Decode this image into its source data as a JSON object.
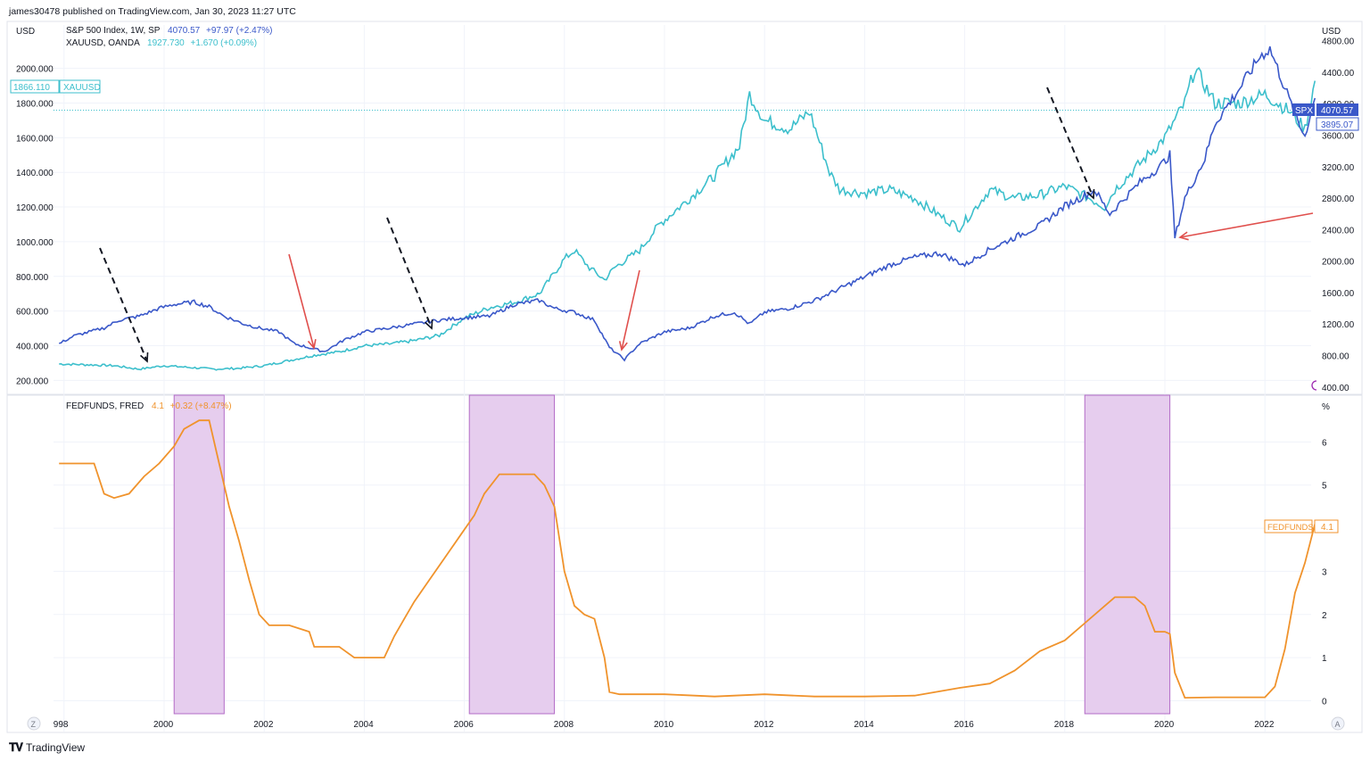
{
  "header": {
    "publisher": "james30478 published on TradingView.com, Jan 30, 2023 11:27 UTC"
  },
  "legend": {
    "spx_name": "S&P 500 Index, 1W, SP",
    "spx_value": "4070.57",
    "spx_change": "+97.97 (+2.47%)",
    "gold_name": "XAUUSD, OANDA",
    "gold_value": "1927.730",
    "gold_change": "+1.670 (+0.09%)",
    "fed_name": "FEDFUNDS, FRED",
    "fed_value": "4.1",
    "fed_change": "+0.32 (+8.47%)"
  },
  "price_labels": {
    "gold_left_value": "1866.110",
    "gold_left_name": "XAUUSD",
    "spx_tag": "SPX",
    "spx_right_value": "4070.57",
    "spx_right_second": "3895.07",
    "fed_tag": "FEDFUNDS",
    "fed_right_value": "4.1"
  },
  "footer": {
    "brand": "TradingView",
    "z_button": "Z",
    "a_button": "A"
  },
  "colors": {
    "spx": "#3a58c9",
    "gold": "#3cbfcc",
    "fed": "#f0932c",
    "shade": "#e6cdee",
    "shade_border": "#b36bc7",
    "red_arrow": "#e0504d",
    "black_arrow": "#131722"
  },
  "chart_data": [
    {
      "type": "line",
      "yaxis_left": {
        "unit": "USD",
        "ticks": [
          "2000.000",
          "1800.000",
          "1600.000",
          "1400.000",
          "1200.000",
          "1000.000",
          "800.000",
          "600.000",
          "400.000",
          "200.000"
        ],
        "ylim": [
          130,
          2250
        ]
      },
      "yaxis_right": {
        "unit": "USD",
        "ticks": [
          "4800.00",
          "4400.00",
          "4000.00",
          "3600.00",
          "3200.00",
          "2800.00",
          "2400.00",
          "2000.00",
          "1600.00",
          "1200.00",
          "800.00",
          "400.00"
        ],
        "ylim": [
          330,
          5000
        ]
      },
      "series": [
        {
          "name": "S&P 500 Index, 1W, SP",
          "axis": "right",
          "x": [
            1997.9,
            1998.2,
            1998.5,
            1998.8,
            1999.1,
            1999.5,
            1999.9,
            2000.2,
            2000.6,
            2000.9,
            2001.2,
            2001.6,
            2001.9,
            2002.3,
            2002.6,
            2002.9,
            2003.2,
            2003.6,
            2004.0,
            2004.5,
            2005.0,
            2005.5,
            2006.0,
            2006.5,
            2007.0,
            2007.5,
            2007.8,
            2008.2,
            2008.6,
            2008.9,
            2009.2,
            2009.5,
            2010.0,
            2010.5,
            2011.0,
            2011.4,
            2011.7,
            2012.0,
            2012.5,
            2013.0,
            2013.5,
            2014.0,
            2014.5,
            2015.0,
            2015.5,
            2016.0,
            2016.5,
            2017.0,
            2017.5,
            2018.0,
            2018.6,
            2018.9,
            2019.2,
            2019.5,
            2019.9,
            2020.1,
            2020.2,
            2020.4,
            2020.8,
            2021.0,
            2021.5,
            2021.9,
            2022.1,
            2022.4,
            2022.7,
            2022.8,
            2023.0
          ],
          "values": [
            950,
            1050,
            1100,
            1150,
            1250,
            1300,
            1400,
            1450,
            1480,
            1420,
            1300,
            1200,
            1150,
            1100,
            950,
            900,
            850,
            1000,
            1100,
            1150,
            1200,
            1250,
            1280,
            1300,
            1450,
            1500,
            1400,
            1350,
            1250,
            900,
            750,
            950,
            1100,
            1150,
            1300,
            1350,
            1200,
            1350,
            1400,
            1500,
            1650,
            1800,
            1950,
            2050,
            2100,
            1950,
            2150,
            2300,
            2450,
            2700,
            2900,
            2600,
            2800,
            3000,
            3200,
            3350,
            2300,
            2800,
            3300,
            3750,
            4200,
            4600,
            4700,
            4200,
            3700,
            3600,
            4070.57
          ]
        },
        {
          "name": "XAUUSD, OANDA",
          "axis": "left",
          "x": [
            1997.9,
            1998.5,
            1999.0,
            1999.5,
            2000.0,
            2000.5,
            2001.0,
            2001.5,
            2002.0,
            2002.5,
            2003.0,
            2003.5,
            2004.0,
            2004.5,
            2005.0,
            2005.5,
            2006.0,
            2006.5,
            2007.0,
            2007.5,
            2008.0,
            2008.2,
            2008.5,
            2008.8,
            2009.0,
            2009.5,
            2009.9,
            2010.5,
            2011.0,
            2011.5,
            2011.7,
            2012.0,
            2012.5,
            2012.9,
            2013.3,
            2013.5,
            2014.0,
            2014.5,
            2015.0,
            2015.5,
            2015.9,
            2016.5,
            2017.0,
            2017.5,
            2018.0,
            2018.5,
            2018.8,
            2019.0,
            2019.5,
            2020.0,
            2020.4,
            2020.6,
            2021.0,
            2021.5,
            2022.0,
            2022.5,
            2022.8,
            2023.0
          ],
          "values": [
            295,
            290,
            285,
            265,
            285,
            275,
            265,
            270,
            285,
            315,
            345,
            365,
            400,
            410,
            430,
            460,
            560,
            620,
            650,
            700,
            900,
            950,
            850,
            780,
            850,
            950,
            1100,
            1250,
            1380,
            1550,
            1850,
            1700,
            1650,
            1750,
            1400,
            1300,
            1280,
            1300,
            1250,
            1150,
            1080,
            1300,
            1250,
            1270,
            1320,
            1250,
            1200,
            1300,
            1450,
            1600,
            1800,
            2000,
            1800,
            1800,
            1850,
            1750,
            1650,
            1927.73
          ]
        }
      ],
      "annotations": [
        {
          "kind": "dashed-arrow",
          "color": "black",
          "at": 1999.6
        },
        {
          "kind": "arrow",
          "color": "red",
          "at": 2002.9
        },
        {
          "kind": "dashed-arrow",
          "color": "black",
          "at": 2005.3
        },
        {
          "kind": "arrow",
          "color": "red",
          "at": 2009.2
        },
        {
          "kind": "dashed-arrow",
          "color": "black",
          "at": 2018.6
        },
        {
          "kind": "arrow",
          "color": "red",
          "at": 2020.3
        }
      ]
    },
    {
      "type": "area",
      "yaxis_right": {
        "unit": "%",
        "ticks": [
          "6",
          "5",
          "4",
          "3",
          "2",
          "1",
          "0"
        ],
        "ylim": [
          -0.3,
          7.0
        ]
      },
      "xaxis": {
        "ticks": [
          "998",
          "2000",
          "2002",
          "2004",
          "2006",
          "2008",
          "2010",
          "2012",
          "2014",
          "2016",
          "2018",
          "2020",
          "2022"
        ]
      },
      "shaded_periods": [
        [
          2000.2,
          2001.2
        ],
        [
          2006.1,
          2007.8
        ],
        [
          2018.4,
          2020.1
        ]
      ],
      "series": [
        {
          "name": "FEDFUNDS, FRED",
          "x": [
            1997.9,
            1998.3,
            1998.6,
            1998.8,
            1999.0,
            1999.3,
            1999.6,
            1999.9,
            2000.2,
            2000.4,
            2000.7,
            2000.9,
            2001.1,
            2001.3,
            2001.5,
            2001.7,
            2001.9,
            2002.1,
            2002.5,
            2002.9,
            2003.0,
            2003.5,
            2003.8,
            2004.0,
            2004.4,
            2004.6,
            2004.8,
            2005.0,
            2005.3,
            2005.6,
            2005.9,
            2006.2,
            2006.4,
            2006.7,
            2007.0,
            2007.4,
            2007.6,
            2007.8,
            2008.0,
            2008.2,
            2008.4,
            2008.6,
            2008.8,
            2008.9,
            2009.1,
            2010.0,
            2011.0,
            2012.0,
            2013.0,
            2014.0,
            2015.0,
            2015.9,
            2016.5,
            2017.0,
            2017.5,
            2018.0,
            2018.4,
            2018.8,
            2019.0,
            2019.4,
            2019.6,
            2019.8,
            2020.0,
            2020.1,
            2020.2,
            2020.4,
            2021.0,
            2021.5,
            2022.0,
            2022.2,
            2022.4,
            2022.6,
            2022.8,
            2023.0
          ],
          "values": [
            5.5,
            5.5,
            5.5,
            4.8,
            4.7,
            4.8,
            5.2,
            5.5,
            5.9,
            6.3,
            6.5,
            6.5,
            5.5,
            4.5,
            3.7,
            2.8,
            2.0,
            1.75,
            1.75,
            1.6,
            1.25,
            1.25,
            1.0,
            1.0,
            1.0,
            1.5,
            1.9,
            2.3,
            2.8,
            3.3,
            3.8,
            4.3,
            4.8,
            5.25,
            5.25,
            5.25,
            5.0,
            4.5,
            3.0,
            2.2,
            2.0,
            1.9,
            1.0,
            0.2,
            0.15,
            0.15,
            0.1,
            0.15,
            0.1,
            0.1,
            0.12,
            0.3,
            0.4,
            0.7,
            1.15,
            1.4,
            1.8,
            2.2,
            2.4,
            2.4,
            2.2,
            1.6,
            1.6,
            1.55,
            0.65,
            0.07,
            0.08,
            0.08,
            0.08,
            0.33,
            1.2,
            2.5,
            3.2,
            4.1
          ]
        }
      ]
    }
  ]
}
